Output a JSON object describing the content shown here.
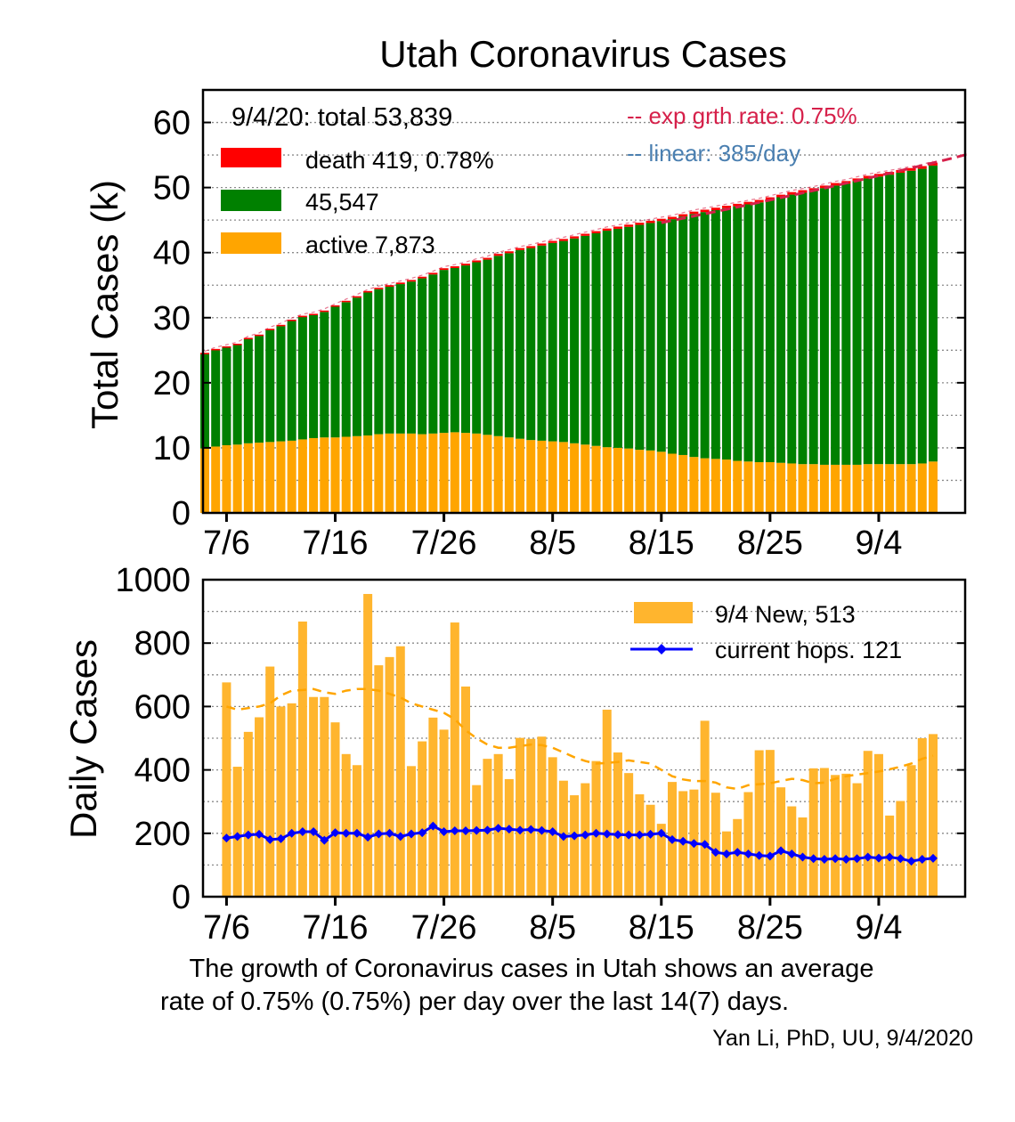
{
  "chart_data": [
    {
      "type": "bar",
      "stacked": true,
      "title": "Utah Coronavirus Cases",
      "ylabel": "Total Cases (k)",
      "ylim": [
        0,
        65
      ],
      "y_ticks": [
        0,
        10,
        20,
        30,
        40,
        50,
        60
      ],
      "x_tick_labels": [
        "7/6",
        "7/16",
        "7/26",
        "8/5",
        "8/15",
        "8/25",
        "9/4"
      ],
      "grid": "horizontal dotted",
      "info_text": "9/4/20: total 53,839",
      "legend": [
        {
          "label": "death 419, 0.78%",
          "color": "#ff0000"
        },
        {
          "label": "45,547",
          "color": "#008000"
        },
        {
          "label": "active 7,873",
          "color": "#ffa500"
        }
      ],
      "fit_lines": [
        {
          "label": "-- exp grth rate: 0.75%",
          "color": "#d6204a"
        },
        {
          "label": "-- linear: 385/day",
          "color": "#4a7fb0"
        }
      ],
      "days_start": "7/4",
      "total_k": [
        24.6,
        25.2,
        25.6,
        26.0,
        26.9,
        27.4,
        28.3,
        28.9,
        29.7,
        30.3,
        30.6,
        31.1,
        31.9,
        32.6,
        33.3,
        34.1,
        34.6,
        35.0,
        35.4,
        35.8,
        36.3,
        36.9,
        37.6,
        37.9,
        38.3,
        38.8,
        39.2,
        39.8,
        40.2,
        40.7,
        41.0,
        41.4,
        41.8,
        42.1,
        42.5,
        42.9,
        43.3,
        43.7,
        44.0,
        44.3,
        44.6,
        44.9,
        45.2,
        45.5,
        45.9,
        46.3,
        46.6,
        46.9,
        47.2,
        47.5,
        47.8,
        48.1,
        48.5,
        48.9,
        49.3,
        49.6,
        49.9,
        50.3,
        50.7,
        51.0,
        51.4,
        51.8,
        52.1,
        52.4,
        52.7,
        53.0,
        53.3,
        53.8
      ],
      "active_k": [
        9.9,
        10.2,
        10.4,
        10.5,
        10.7,
        10.8,
        10.9,
        11.0,
        11.1,
        11.3,
        11.5,
        11.6,
        11.6,
        11.7,
        11.8,
        11.9,
        12.1,
        12.2,
        12.2,
        12.2,
        12.1,
        12.2,
        12.3,
        12.4,
        12.3,
        12.2,
        12.0,
        11.8,
        11.6,
        11.4,
        11.2,
        11.1,
        11.0,
        10.9,
        10.7,
        10.5,
        10.3,
        10.1,
        10.0,
        9.9,
        9.7,
        9.6,
        9.4,
        9.1,
        8.9,
        8.6,
        8.4,
        8.3,
        8.2,
        8.0,
        7.9,
        7.8,
        7.8,
        7.7,
        7.6,
        7.5,
        7.5,
        7.4,
        7.4,
        7.4,
        7.4,
        7.5,
        7.5,
        7.5,
        7.5,
        7.5,
        7.6,
        7.9
      ],
      "death_k": [
        0.17,
        0.17,
        0.18,
        0.18,
        0.18,
        0.19,
        0.19,
        0.19,
        0.2,
        0.2,
        0.2,
        0.21,
        0.21,
        0.22,
        0.22,
        0.23,
        0.23,
        0.24,
        0.24,
        0.25,
        0.25,
        0.26,
        0.26,
        0.27,
        0.27,
        0.28,
        0.28,
        0.29,
        0.29,
        0.3,
        0.3,
        0.31,
        0.31,
        0.31,
        0.32,
        0.32,
        0.33,
        0.33,
        0.34,
        0.34,
        0.34,
        0.35,
        0.35,
        0.36,
        0.36,
        0.36,
        0.37,
        0.37,
        0.37,
        0.38,
        0.38,
        0.38,
        0.39,
        0.39,
        0.39,
        0.4,
        0.4,
        0.4,
        0.4,
        0.41,
        0.41,
        0.41,
        0.41,
        0.42,
        0.42,
        0.42,
        0.42,
        0.42
      ]
    },
    {
      "type": "bar",
      "ylabel": "Daily Cases",
      "ylim": [
        0,
        1000
      ],
      "y_ticks": [
        0,
        200,
        400,
        600,
        800,
        1000
      ],
      "x_tick_labels": [
        "7/6",
        "7/16",
        "7/26",
        "8/5",
        "8/15",
        "8/25",
        "9/4"
      ],
      "grid": "horizontal dotted",
      "legend": [
        {
          "label": "9/4 New, 513",
          "color": "#ffb52e",
          "kind": "bar"
        },
        {
          "label": "current hops. 121",
          "color": "#0000ff",
          "kind": "line-marker"
        }
      ],
      "series": [
        {
          "name": "9/4 New, 513",
          "kind": "bar",
          "color": "#ffb52e",
          "values": [
            676,
            410,
            520,
            566,
            726,
            600,
            610,
            868,
            630,
            630,
            550,
            450,
            415,
            955,
            730,
            756,
            790,
            412,
            490,
            565,
            527,
            865,
            663,
            352,
            435,
            450,
            371,
            501,
            498,
            505,
            440,
            366,
            320,
            358,
            428,
            590,
            455,
            390,
            323,
            290,
            230,
            362,
            333,
            338,
            555,
            328,
            206,
            245,
            330,
            462,
            463,
            345,
            285,
            250,
            405,
            406,
            384,
            388,
            358,
            460,
            450,
            256,
            302,
            415,
            500,
            513
          ]
        },
        {
          "name": "current hops. 121",
          "kind": "line",
          "color": "#0000ff",
          "values": [
            185,
            190,
            195,
            197,
            180,
            183,
            200,
            205,
            205,
            178,
            202,
            200,
            200,
            188,
            198,
            200,
            190,
            198,
            202,
            223,
            205,
            208,
            208,
            209,
            210,
            216,
            213,
            210,
            212,
            209,
            205,
            190,
            192,
            195,
            200,
            198,
            196,
            195,
            195,
            197,
            200,
            180,
            175,
            168,
            165,
            140,
            135,
            140,
            135,
            130,
            128,
            145,
            135,
            125,
            120,
            118,
            120,
            118,
            120,
            125,
            122,
            125,
            120,
            112,
            118,
            121
          ]
        },
        {
          "name": "",
          "kind": "line-dashed",
          "color": "#ffa500",
          "values": [
            600,
            590,
            595,
            600,
            610,
            635,
            650,
            652,
            655,
            645,
            640,
            650,
            655,
            655,
            650,
            640,
            628,
            610,
            600,
            590,
            580,
            560,
            525,
            500,
            480,
            470,
            470,
            475,
            480,
            478,
            470,
            455,
            440,
            428,
            420,
            422,
            425,
            430,
            425,
            420,
            400,
            380,
            370,
            365,
            365,
            360,
            345,
            340,
            352,
            355,
            358,
            365,
            372,
            368,
            358,
            360,
            372,
            380,
            385,
            390,
            395,
            402,
            410,
            420,
            435,
            445
          ]
        }
      ]
    }
  ],
  "caption": {
    "line1": "The growth of Coronavirus cases in Utah shows an average",
    "line2": "rate of 0.75% (0.75%) per day over the last 14(7) days.",
    "credit": "Yan Li, PhD, UU, 9/4/2020"
  }
}
